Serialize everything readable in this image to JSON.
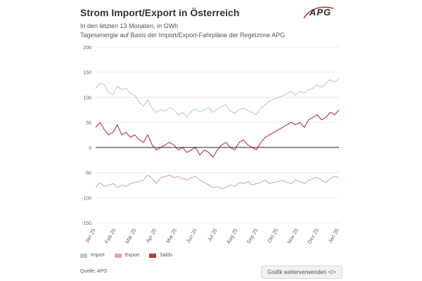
{
  "header": {
    "title": "Strom Import/Export in Österreich",
    "subtitle": "In den letzten 13 Monaten, in GWh",
    "description": "Tagesenergie auf Basis der Import/Export-Fahrpläne der Regelzone APG",
    "logo": "APG"
  },
  "footer": {
    "source": "Quelle: APG",
    "reuse_button": "Grafik weiterverwenden </>"
  },
  "colors": {
    "import": "#b3ccdc",
    "export": "#dca6a6",
    "saldo": "#b13a3a",
    "grid": "#e5e5e5",
    "zero_line": "#222222"
  },
  "chart_data": {
    "type": "line",
    "title": "Strom Import/Export in Österreich",
    "ylabel": "GWh",
    "ylim": [
      -150,
      200
    ],
    "yticks": [
      -150,
      -100,
      -50,
      0,
      50,
      100,
      150,
      200
    ],
    "xticks": [
      "Jan 25",
      "Feb 25",
      "Mär 25",
      "Apr 25",
      "Mai 25",
      "Jun 25",
      "Jul 25",
      "Aug 25",
      "Sep 25",
      "Okt 25",
      "Nov 25",
      "Dez 25",
      "Jan 26"
    ],
    "x_unit": "week",
    "x": [
      0,
      1,
      2,
      3,
      4,
      5,
      6,
      7,
      8,
      9,
      10,
      11,
      12,
      13,
      14,
      15,
      16,
      17,
      18,
      19,
      20,
      21,
      22,
      23,
      24,
      25,
      26,
      27,
      28,
      29,
      30,
      31,
      32,
      33,
      34,
      35,
      36,
      37,
      38,
      39,
      40,
      41,
      42,
      43,
      44,
      45,
      46,
      47,
      48,
      49,
      50,
      51,
      52,
      53,
      54,
      55,
      56
    ],
    "series": [
      {
        "name": "Import",
        "values": [
          118,
          128,
          125,
          110,
          105,
          122,
          115,
          118,
          108,
          104,
          90,
          82,
          95,
          78,
          70,
          75,
          72,
          80,
          75,
          65,
          70,
          60,
          72,
          78,
          70,
          75,
          80,
          70,
          76,
          82,
          85,
          72,
          68,
          76,
          78,
          74,
          70,
          65,
          78,
          85,
          92,
          96,
          100,
          102,
          108,
          112,
          104,
          112,
          108,
          115,
          118,
          125,
          120,
          128,
          135,
          130,
          138
        ]
      },
      {
        "name": "Export",
        "values": [
          -80,
          -70,
          -78,
          -75,
          -72,
          -80,
          -75,
          -78,
          -72,
          -70,
          -68,
          -65,
          -55,
          -62,
          -72,
          -60,
          -58,
          -55,
          -60,
          -58,
          -62,
          -65,
          -60,
          -58,
          -65,
          -70,
          -75,
          -80,
          -78,
          -82,
          -80,
          -75,
          -78,
          -70,
          -72,
          -68,
          -75,
          -72,
          -70,
          -65,
          -72,
          -70,
          -68,
          -65,
          -70,
          -72,
          -65,
          -68,
          -72,
          -66,
          -62,
          -60,
          -65,
          -70,
          -62,
          -58,
          -60
        ]
      },
      {
        "name": "Saldo",
        "values": [
          40,
          50,
          35,
          25,
          30,
          45,
          25,
          30,
          20,
          25,
          15,
          10,
          25,
          5,
          -5,
          0,
          5,
          10,
          5,
          -5,
          0,
          -10,
          -5,
          0,
          -15,
          -5,
          -10,
          -20,
          -5,
          5,
          10,
          0,
          -5,
          10,
          15,
          5,
          0,
          -5,
          10,
          20,
          25,
          30,
          35,
          40,
          45,
          50,
          45,
          50,
          40,
          55,
          60,
          65,
          55,
          60,
          70,
          65,
          75
        ]
      }
    ],
    "legend": [
      "Import",
      "Export",
      "Saldo"
    ]
  }
}
